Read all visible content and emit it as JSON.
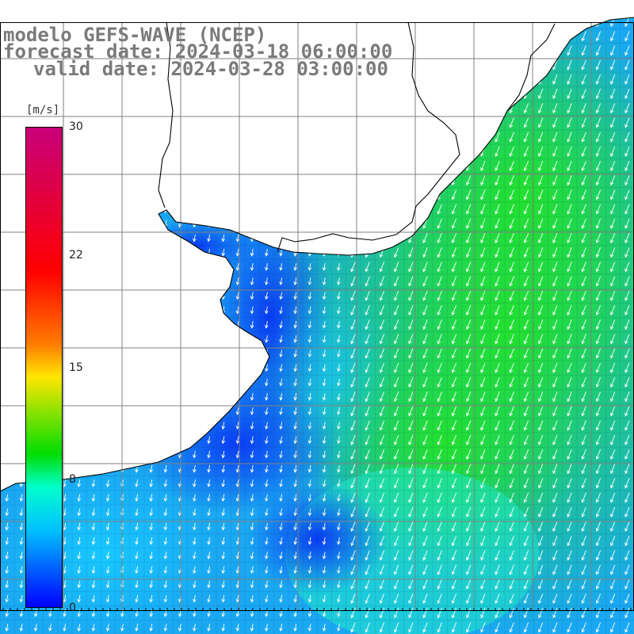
{
  "title": {
    "model": "modelo GEFS-WAVE (NCEP)",
    "forecast": "forecast date: 2024-03-18 06:00:00",
    "valid": "valid date: 2024-03-28 03:00:00"
  },
  "colorbar": {
    "unit": "[m/s]",
    "min": 0,
    "max": 30,
    "ticks": [
      {
        "value": 30,
        "label": "30"
      },
      {
        "value": 22,
        "label": "22"
      },
      {
        "value": 15,
        "label": "15"
      },
      {
        "value": 8,
        "label": "8"
      },
      {
        "value": 0,
        "label": "0"
      }
    ],
    "colors": [
      "#c8007a",
      "#ff0000",
      "#ff7a00",
      "#ffe600",
      "#00dd00",
      "#00ffcc",
      "#00c0ff",
      "#0060ff",
      "#0000ff"
    ]
  },
  "map": {
    "land_color": "#ffffff",
    "grid_color": "#808080",
    "coast_color": "#000000",
    "wind_direction": "southwest",
    "arrow_color": "#ffffff"
  }
}
